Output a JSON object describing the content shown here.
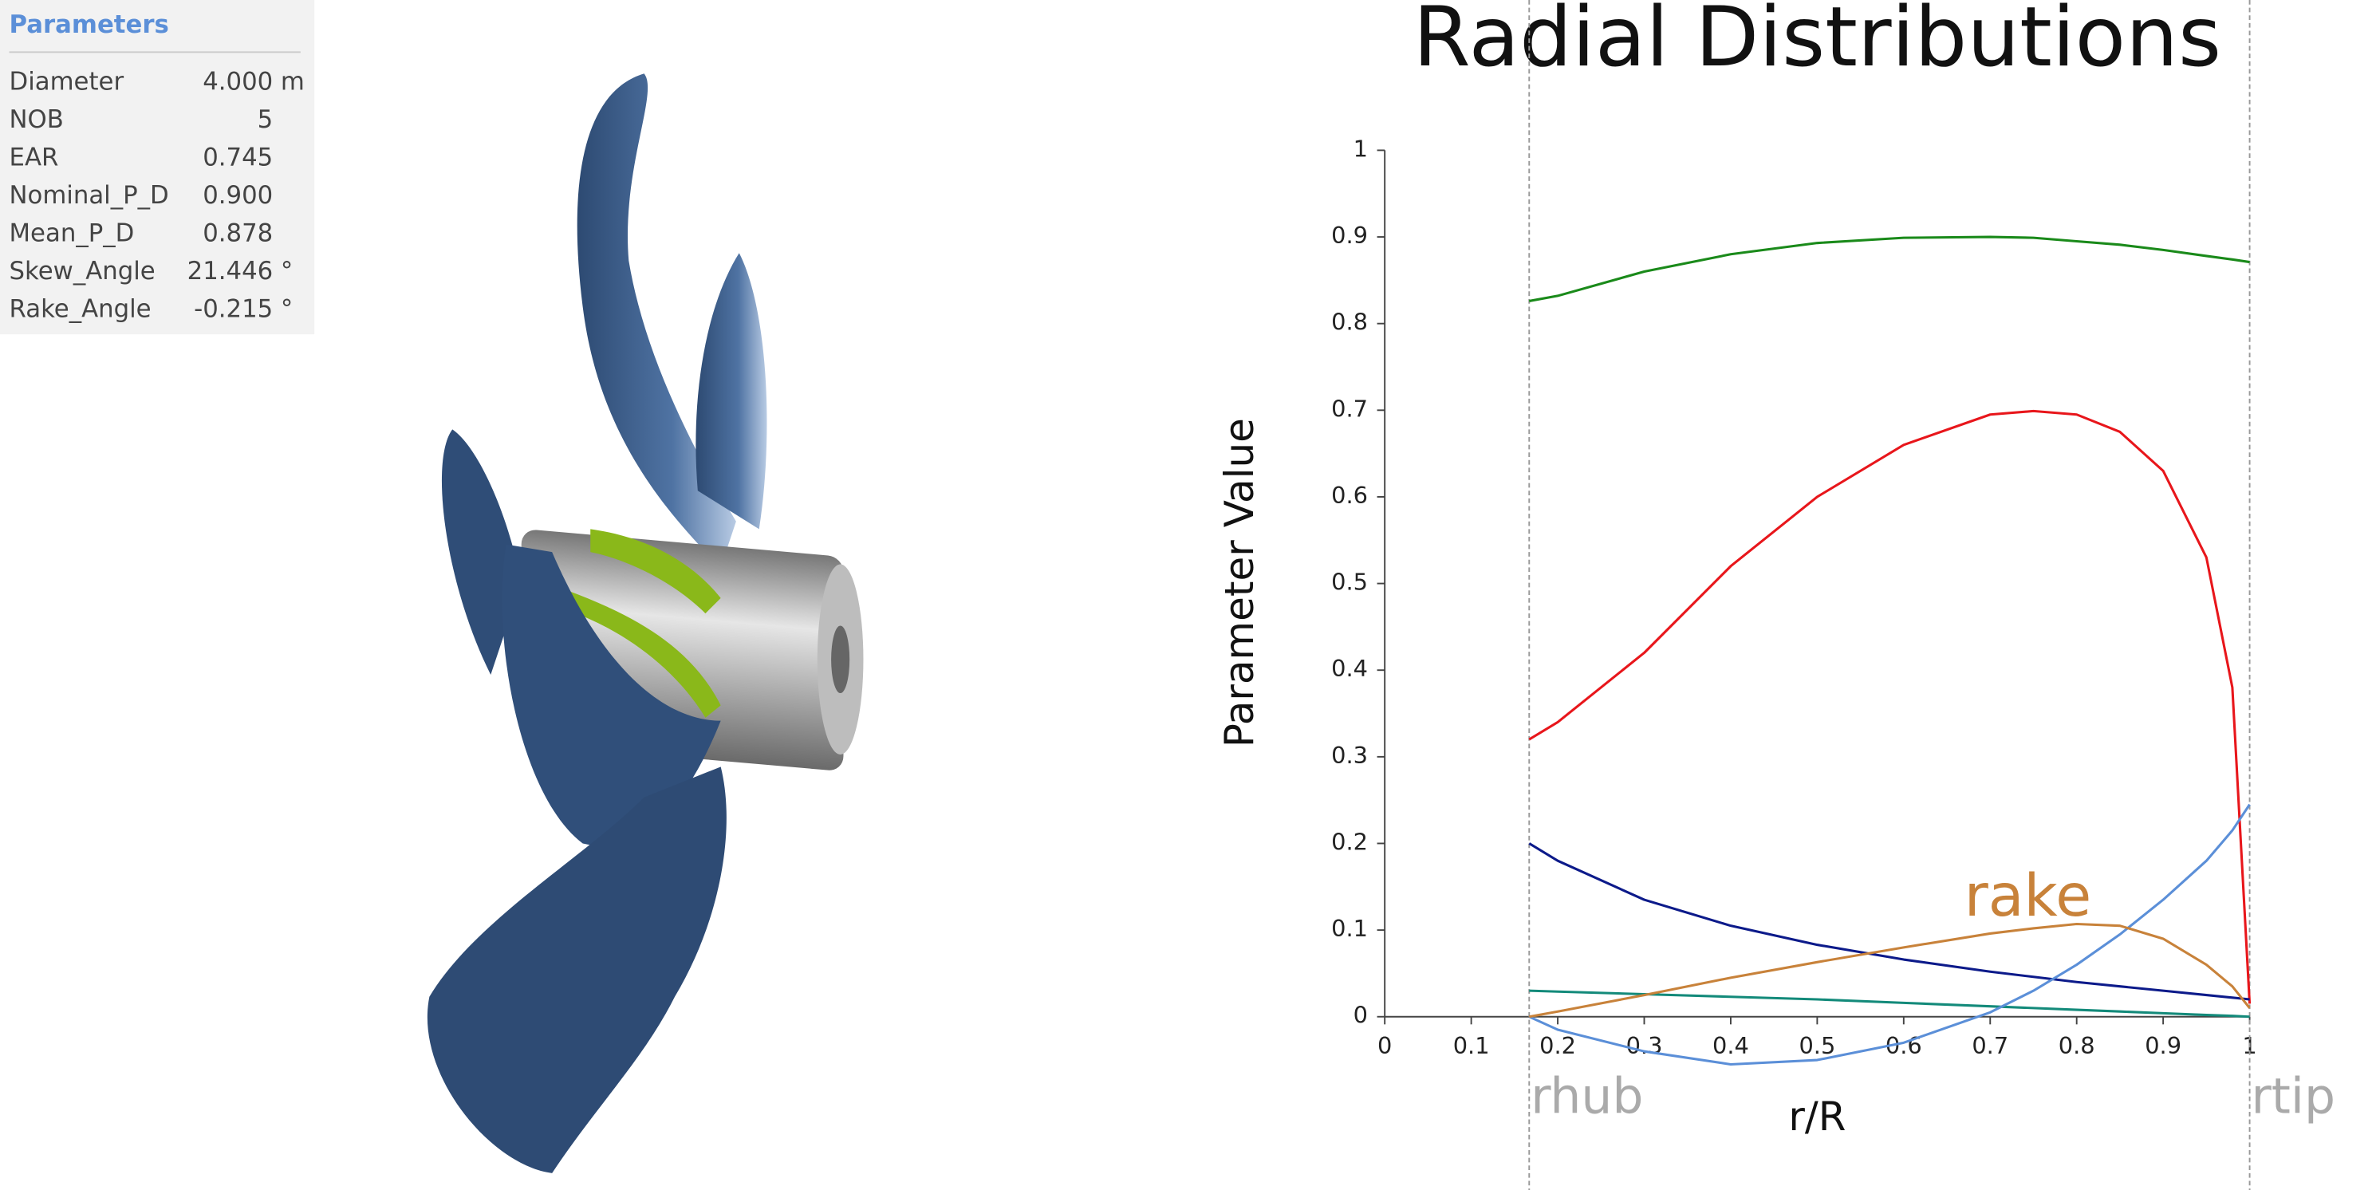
{
  "panel": {
    "title": "Parameters",
    "rows": [
      {
        "name": "Diameter",
        "value": "4.000",
        "unit": "m"
      },
      {
        "name": "NOB",
        "value": "5"
      },
      {
        "name": "EAR",
        "value": "0.745"
      },
      {
        "name": "Nominal_P_D",
        "value": "0.900"
      },
      {
        "name": "Mean_P_D",
        "value": "0.878"
      },
      {
        "name": "Skew_Angle",
        "value": "21.446",
        "unit": "°"
      },
      {
        "name": "Rake_Angle",
        "value": "-0.215",
        "unit": "°"
      }
    ]
  },
  "chart_data": {
    "type": "line",
    "title": "Radial Distributions",
    "x_label": "r/R",
    "y_label": "Parameter Value",
    "x": [
      0.167,
      0.2,
      0.3,
      0.4,
      0.5,
      0.6,
      0.7,
      0.75,
      0.8,
      0.85,
      0.9,
      0.95,
      0.98,
      1.0
    ],
    "series": [
      {
        "color": "#1a8a1a",
        "values": [
          0.826,
          0.832,
          0.86,
          0.88,
          0.893,
          0.899,
          0.9,
          0.899,
          0.895,
          0.891,
          0.885,
          0.878,
          0.874,
          0.871
        ]
      },
      {
        "color": "#e8161b",
        "values": [
          0.32,
          0.34,
          0.42,
          0.52,
          0.6,
          0.66,
          0.695,
          0.699,
          0.695,
          0.675,
          0.63,
          0.53,
          0.38,
          0.015
        ]
      },
      {
        "color": "#0c1a8a",
        "values": [
          0.2,
          0.18,
          0.135,
          0.105,
          0.083,
          0.066,
          0.052,
          0.046,
          0.04,
          0.035,
          0.03,
          0.025,
          0.022,
          0.02
        ]
      },
      {
        "color": "#138a7a",
        "values": [
          0.03,
          0.029,
          0.026,
          0.023,
          0.02,
          0.016,
          0.012,
          0.01,
          0.008,
          0.006,
          0.004,
          0.002,
          0.001,
          0
        ]
      },
      {
        "color": "#5b8fd8",
        "values": [
          0,
          -0.015,
          -0.04,
          -0.055,
          -0.05,
          -0.03,
          0.005,
          0.03,
          0.06,
          0.095,
          0.135,
          0.18,
          0.215,
          0.245
        ]
      },
      {
        "color": "#c8823a",
        "values": [
          0,
          0.006,
          0.025,
          0.045,
          0.063,
          0.08,
          0.096,
          0.102,
          0.107,
          0.105,
          0.09,
          0.06,
          0.035,
          0.01
        ]
      }
    ],
    "annotations": [
      {
        "text": "rake",
        "x": 0.67,
        "y": 0.135,
        "color": "#c8823a"
      }
    ],
    "vlines": [
      {
        "x": 0.167,
        "label": "rhub"
      },
      {
        "x": 1,
        "label": "rtip"
      }
    ],
    "xlim": [
      0,
      1
    ],
    "ylim": [
      0,
      1
    ],
    "xticks": [
      0,
      0.1,
      0.2,
      0.3,
      0.4,
      0.5,
      0.6,
      0.7,
      0.8,
      0.9,
      1
    ],
    "yticks": [
      0,
      0.1,
      0.2,
      0.3,
      0.4,
      0.5,
      0.6,
      0.7,
      0.8,
      0.9,
      1
    ]
  }
}
